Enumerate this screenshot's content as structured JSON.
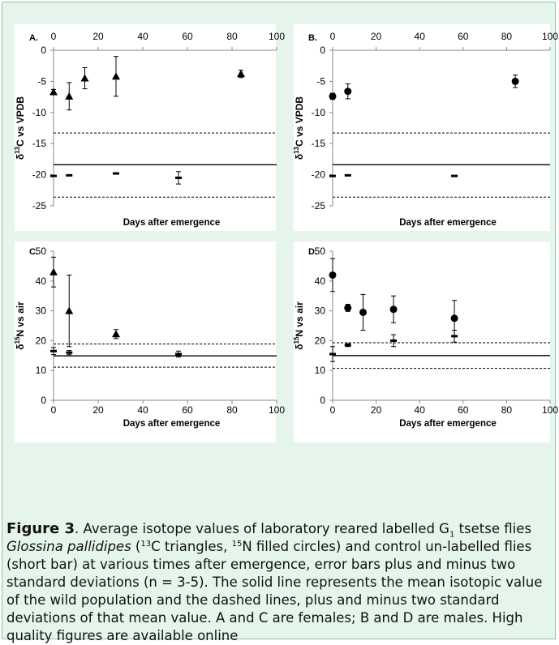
{
  "colors": {
    "frame_bg": "#e6f5ec",
    "frame_border": "#8fc4a4",
    "plot_bg": "#ffffff",
    "ink": "#000000"
  },
  "chart_data": [
    {
      "type": "scatter",
      "panel_label": "A.",
      "ylabel_prefix": "δ",
      "ylabel_sup": "13",
      "ylabel_main": "C vs VPDB",
      "xlabel": "Days after emergence",
      "x_axis_position": "top",
      "xlim": [
        0,
        100
      ],
      "ylim": [
        -25,
        0
      ],
      "xticks": [
        "0",
        "20",
        "40",
        "60",
        "80",
        "100"
      ],
      "yticks": [
        "0",
        "-5",
        "-10",
        "-15",
        "-20",
        "-25"
      ],
      "solid_line": -18.4,
      "dashed_lines": [
        -13.3,
        -23.6
      ],
      "series": [
        {
          "marker": "triangle",
          "points": [
            {
              "x": 0,
              "y": -6.7,
              "err": 0.4
            },
            {
              "x": 7,
              "y": -7.4,
              "err": 2.2
            },
            {
              "x": 14,
              "y": -4.5,
              "err": 1.7
            },
            {
              "x": 28,
              "y": -4.2,
              "err": 3.2
            },
            {
              "x": 84,
              "y": -3.8,
              "err": 0.6
            }
          ]
        },
        {
          "marker": "bar",
          "points": [
            {
              "x": 0,
              "y": -20.2,
              "err": 0
            },
            {
              "x": 7,
              "y": -20.1,
              "err": 0
            },
            {
              "x": 28,
              "y": -19.8,
              "err": 0
            },
            {
              "x": 56,
              "y": -20.5,
              "err": 1.0
            }
          ]
        }
      ]
    },
    {
      "type": "scatter",
      "panel_label": "B.",
      "ylabel_prefix": "δ",
      "ylabel_sup": "13",
      "ylabel_main": "C vs VPDB",
      "xlabel": "Days after emergence",
      "x_axis_position": "top",
      "xlim": [
        0,
        100
      ],
      "ylim": [
        -25,
        0
      ],
      "xticks": [
        "0",
        "20",
        "40",
        "60",
        "80",
        "100"
      ],
      "yticks": [
        "0",
        "-5",
        "-10",
        "-15",
        "-20",
        "-25"
      ],
      "solid_line": -18.4,
      "dashed_lines": [
        -13.3,
        -23.6
      ],
      "series": [
        {
          "marker": "circle",
          "points": [
            {
              "x": 0,
              "y": -7.4,
              "err": 0.5
            },
            {
              "x": 7,
              "y": -6.6,
              "err": 1.2
            },
            {
              "x": 84,
              "y": -5.0,
              "err": 1.0
            }
          ]
        },
        {
          "marker": "bar",
          "points": [
            {
              "x": 0,
              "y": -20.2,
              "err": 0
            },
            {
              "x": 7,
              "y": -20.1,
              "err": 0
            },
            {
              "x": 56,
              "y": -20.2,
              "err": 0
            }
          ]
        }
      ]
    },
    {
      "type": "scatter",
      "panel_label": "C.",
      "ylabel_prefix": "δ",
      "ylabel_sup": "15",
      "ylabel_main": "N vs air",
      "xlabel": "Days after emergence",
      "x_axis_position": "bottom",
      "xlim": [
        0,
        100
      ],
      "ylim": [
        0,
        50
      ],
      "xticks": [
        "0",
        "20",
        "40",
        "60",
        "80",
        "100"
      ],
      "yticks": [
        "50",
        "40",
        "30",
        "20",
        "10",
        "0"
      ],
      "solid_line": 14.9,
      "dashed_lines": [
        18.9,
        11.1
      ],
      "series": [
        {
          "marker": "triangle",
          "points": [
            {
              "x": 0,
              "y": 43.0,
              "err": 5.0
            },
            {
              "x": 7,
              "y": 30.0,
              "err": 12.0
            },
            {
              "x": 28,
              "y": 22.2,
              "err": 1.5
            }
          ]
        },
        {
          "marker": "bar",
          "points": [
            {
              "x": 0,
              "y": 16.5,
              "err": 1.2
            },
            {
              "x": 7,
              "y": 16.0,
              "err": 0.7
            },
            {
              "x": 56,
              "y": 15.5,
              "err": 1.0
            }
          ]
        }
      ]
    },
    {
      "type": "scatter",
      "panel_label": "D.",
      "ylabel_prefix": "δ",
      "ylabel_sup": "15",
      "ylabel_main": "N vs air",
      "xlabel": "Days after emergence",
      "x_axis_position": "bottom",
      "xlim": [
        0,
        100
      ],
      "ylim": [
        0,
        50
      ],
      "xticks": [
        "0",
        "20",
        "40",
        "60",
        "80",
        "100"
      ],
      "yticks": [
        "50",
        "40",
        "30",
        "20",
        "10",
        "0"
      ],
      "solid_line": 15.0,
      "dashed_lines": [
        19.3,
        10.7
      ],
      "series": [
        {
          "marker": "circle",
          "points": [
            {
              "x": 0,
              "y": 42.0,
              "err": 5.5
            },
            {
              "x": 7,
              "y": 31.0,
              "err": 1.2
            },
            {
              "x": 14,
              "y": 29.5,
              "err": 6.0
            },
            {
              "x": 28,
              "y": 30.5,
              "err": 4.5
            },
            {
              "x": 56,
              "y": 27.5,
              "err": 6.0
            }
          ]
        },
        {
          "marker": "bar",
          "points": [
            {
              "x": 0,
              "y": 15.5,
              "err": 2.5
            },
            {
              "x": 7,
              "y": 18.5,
              "err": 0.5
            },
            {
              "x": 28,
              "y": 20.0,
              "err": 2.0
            },
            {
              "x": 56,
              "y": 21.5,
              "err": 2.0
            }
          ]
        }
      ]
    }
  ],
  "caption": {
    "figure_label": "Figure 3",
    "t1": ". Average isotope values of laboratory reared labelled G",
    "t1_sub": "1",
    "t2": " tsetse flies ",
    "species": "Glossina pallidipes",
    "t3": " (",
    "c_sup": "13",
    "t4": "C triangles, ",
    "n_sup": "15",
    "t5": "N filled circles) and control un-labelled flies (short bar) at various times after emergence, error bars plus and minus two standard deviations (n = 3-5). The solid line represents the mean isotopic value of the wild population and the dashed lines, plus and minus two standard deviations of that mean value. A and C are females; B and D are males. High quality figures are available online"
  }
}
